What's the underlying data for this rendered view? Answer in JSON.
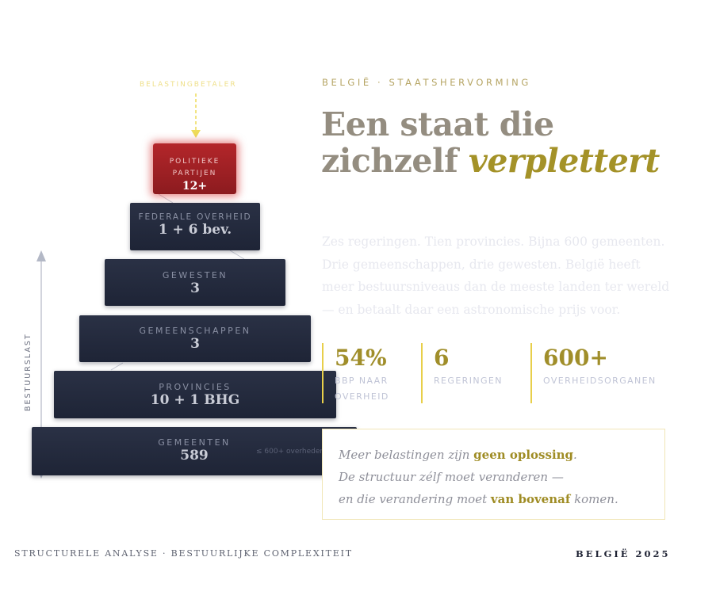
{
  "diagram": {
    "taxpayer_label": "BELASTINGBETALER",
    "axis_label": "BESTUURSLAST",
    "base_note": "≤ 600+ overheden",
    "tiers": [
      {
        "label_lines": [
          "POLITIEKE",
          "PARTIJEN"
        ],
        "value": "12+"
      },
      {
        "label": "FEDERALE OVERHEID",
        "value": "1 + 6 bev."
      },
      {
        "label": "GEWESTEN",
        "value": "3"
      },
      {
        "label": "GEMEENSCHAPPEN",
        "value": "3"
      },
      {
        "label": "PROVINCIES",
        "value": "10 + 1 BHG"
      },
      {
        "label": "GEMEENTEN",
        "value": "589"
      }
    ]
  },
  "eyebrow": "BELGIË · STAATSHERVORMING",
  "headline": {
    "line1": "Een staat die",
    "line2_plain": "zichzelf ",
    "line2_accent": "verplettert"
  },
  "intro": "Zes regeringen. Tien provincies. Bijna 600 gemeenten. Drie gemeenschappen, drie gewesten. België heeft meer bestuursniveaus dan de meeste landen ter wereld — en betaalt daar een astronomische prijs voor.",
  "stats": [
    {
      "value": "54%",
      "caption_lines": [
        "BBP NAAR",
        "OVERHEID"
      ]
    },
    {
      "value": "6",
      "caption_lines": [
        "REGERINGEN"
      ]
    },
    {
      "value": "600+",
      "caption_lines": [
        "OVERHEIDSORGANEN"
      ]
    }
  ],
  "quote": {
    "l1_a": "Meer belastingen zijn ",
    "l1_b": "geen oplossing",
    "l1_c": ".",
    "l2": "De structuur zélf moet veranderen —",
    "l3_a": "en die verandering moet ",
    "l3_b": "van bovenaf",
    "l3_c": " komen."
  },
  "footer": {
    "left": "STRUCTURELE ANALYSE · BESTUURLIJKE COMPLEXITEIT",
    "right": "BELGIË 2025"
  },
  "colors": {
    "accent_gold": "#a49228",
    "tier_dark": "#222839",
    "tier_top_red": "#a52226",
    "arrow_yellow": "#eedc5a"
  }
}
